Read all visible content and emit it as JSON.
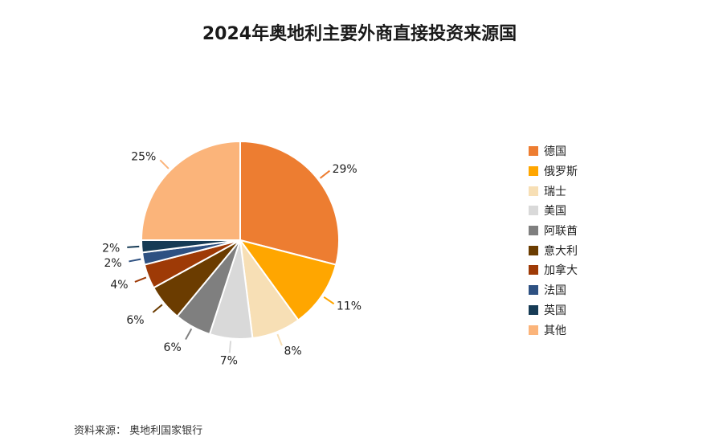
{
  "chart_data": {
    "type": "pie",
    "title": "2024年奥地利主要外商直接投资来源国",
    "categories": [
      "德国",
      "俄罗斯",
      "瑞士",
      "美国",
      "阿联酋",
      "意大利",
      "加拿大",
      "法国",
      "英国",
      "其他"
    ],
    "values": [
      29,
      11,
      8,
      7,
      6,
      6,
      4,
      2,
      2,
      25
    ],
    "labels": [
      "29%",
      "11%",
      "8%",
      "7%",
      "6%",
      "6%",
      "4%",
      "2%",
      "2%",
      "25%"
    ],
    "colors": [
      "#ED7D31",
      "#FFA600",
      "#F7DFB5",
      "#D9D9D9",
      "#7F7F7F",
      "#6B3C00",
      "#9E3A06",
      "#2E5182",
      "#163B55",
      "#FBB47A"
    ],
    "legend_position": "right"
  },
  "source": "资料来源： 奥地利国家银行"
}
